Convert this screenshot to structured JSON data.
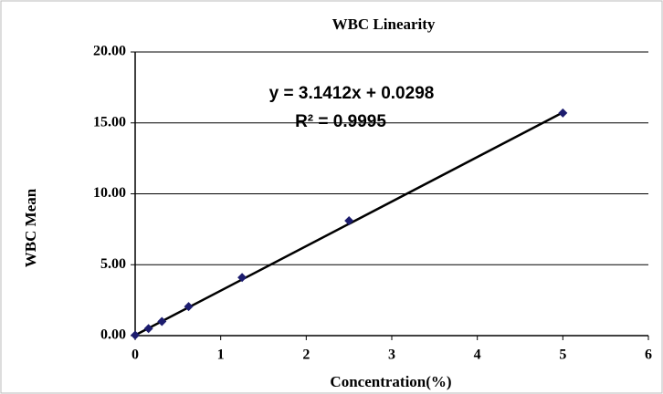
{
  "chart_data": {
    "type": "scatter",
    "title": "WBC Linearity",
    "x_label": "Concentration(%)",
    "y_label": "WBC Mean",
    "series": [
      {
        "name": "WBC Mean",
        "color": "#1c1c6e",
        "x": [
          0,
          0.156,
          0.3125,
          0.625,
          1.25,
          2.5,
          5
        ],
        "values": [
          0.03,
          0.5,
          1.0,
          2.05,
          4.1,
          8.1,
          15.7
        ]
      }
    ],
    "trendline": {
      "slope": 3.1412,
      "intercept": 0.0298,
      "color": "#000000",
      "equation": "y = 3.1412x + 0.0298",
      "r2_label": "R² = 0.9995"
    },
    "xlim": [
      0,
      6
    ],
    "xticks": [
      0,
      1,
      2,
      3,
      4,
      5,
      6
    ],
    "ylim": [
      0,
      20
    ],
    "yticks": [
      {
        "value": 0,
        "label": "0.00"
      },
      {
        "value": 5,
        "label": "5.00"
      },
      {
        "value": 10,
        "label": "10.00"
      },
      {
        "value": 15,
        "label": "15.00"
      },
      {
        "value": 20,
        "label": "20.00"
      }
    ],
    "grid": true
  }
}
